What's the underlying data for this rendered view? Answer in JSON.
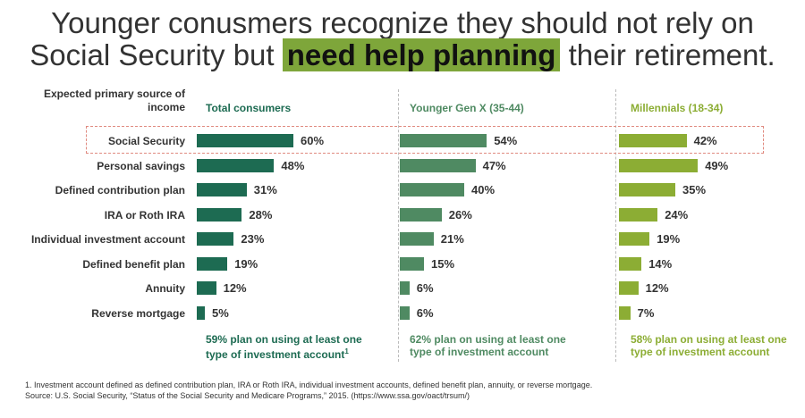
{
  "title": {
    "line1": "Younger conusmers recognize they should not rely on",
    "line2_pre": "Social Security but",
    "line2_highlight": "need help planning",
    "line2_post": "their retirement."
  },
  "row_header": "Expected primary source of income",
  "chart_data": {
    "type": "bar",
    "orientation": "horizontal",
    "categories": [
      "Social Security",
      "Personal savings",
      "Defined contribution plan",
      "IRA or Roth IRA",
      "Individual investment account",
      "Defined benefit plan",
      "Annuity",
      "Reverse mortgage"
    ],
    "highlighted_category": "Social Security",
    "series": [
      {
        "name": "Total consumers",
        "values": [
          60,
          48,
          31,
          28,
          23,
          19,
          12,
          5
        ],
        "labels": [
          "60%",
          "48%",
          "31%",
          "28%",
          "23%",
          "19%",
          "12%",
          "5%"
        ],
        "color": "#1d6b52"
      },
      {
        "name": "Younger Gen X (35-44)",
        "values": [
          54,
          47,
          40,
          26,
          21,
          15,
          6,
          6
        ],
        "labels": [
          "54%",
          "47%",
          "40%",
          "26%",
          "21%",
          "15%",
          "6%",
          "6%"
        ],
        "color": "#4f8a62"
      },
      {
        "name": "Millennials (18-34)",
        "values": [
          42,
          49,
          35,
          24,
          19,
          14,
          12,
          7
        ],
        "labels": [
          "42%",
          "49%",
          "35%",
          "24%",
          "19%",
          "14%",
          "12%",
          "7%"
        ],
        "color": "#8cad34"
      }
    ],
    "column_notes": [
      {
        "line1": "59% plan on using at least one",
        "line2": "type of investment account",
        "sup": "1"
      },
      {
        "line1": "62% plan on using at least one",
        "line2": "type of investment account",
        "sup": ""
      },
      {
        "line1": "58% plan on using at least one",
        "line2": "type of investment account",
        "sup": ""
      }
    ]
  },
  "footnote": {
    "line1": "1. Investment account defined as defined contribution plan, IRA or Roth IRA, individual investment accounts, defined benefit plan, annuity, or reverse mortgage.",
    "line2": "Source: U.S. Social Security, “Status of the Social Security and Medicare Programs,” 2015. (https://www.ssa.gov/oact/trsum/)"
  }
}
